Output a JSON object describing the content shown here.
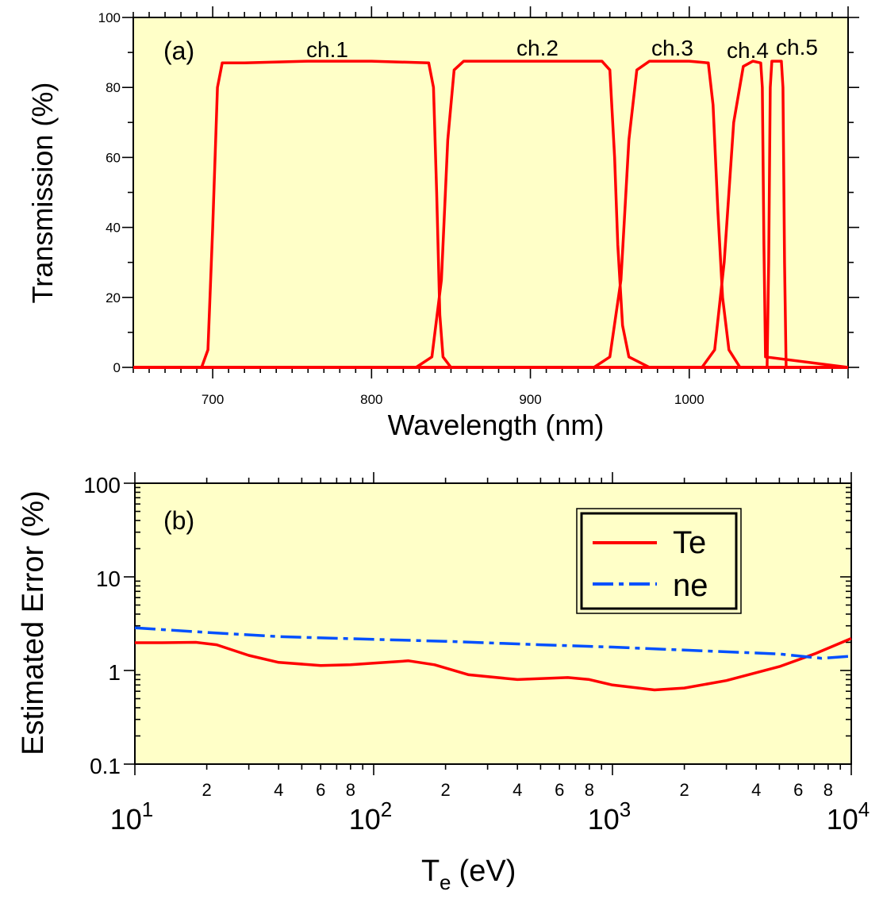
{
  "chart_data": [
    {
      "type": "line",
      "panel_label": "(a)",
      "xlabel": "Wavelength (nm)",
      "ylabel": "Transmission (%)",
      "xlim": [
        650,
        1100
      ],
      "ylim": [
        0,
        100
      ],
      "x_ticks": [
        700,
        800,
        900,
        1000
      ],
      "y_ticks": [
        0,
        20,
        40,
        60,
        80,
        100
      ],
      "grid": false,
      "line_color": "#ff0000",
      "series": [
        {
          "name": "ch.1",
          "x": [
            650,
            693,
            697,
            700,
            703,
            706,
            720,
            760,
            800,
            836,
            839,
            841,
            843,
            845,
            850,
            1100
          ],
          "y": [
            0,
            0,
            5,
            40,
            80,
            87,
            87,
            87.5,
            87.5,
            87,
            80,
            50,
            15,
            3,
            0,
            0
          ]
        },
        {
          "name": "ch.2",
          "x": [
            650,
            828,
            838,
            844,
            848,
            852,
            858,
            900,
            945,
            950,
            953,
            955,
            958,
            962,
            975,
            1100
          ],
          "y": [
            0,
            0,
            3,
            25,
            65,
            85,
            87.5,
            87.5,
            87.5,
            85,
            60,
            35,
            12,
            3,
            0,
            0
          ]
        },
        {
          "name": "ch.3",
          "x": [
            650,
            940,
            950,
            957,
            962,
            967,
            975,
            1000,
            1012,
            1015,
            1018,
            1021,
            1025,
            1032,
            1100
          ],
          "y": [
            0,
            0,
            3,
            25,
            65,
            85,
            87.5,
            87.5,
            87,
            75,
            45,
            20,
            5,
            0,
            0
          ]
        },
        {
          "name": "ch.4",
          "x": [
            650,
            1008,
            1016,
            1022,
            1028,
            1034,
            1040,
            1045,
            1046,
            1047,
            1048,
            1100
          ],
          "y": [
            0,
            0,
            5,
            30,
            70,
            86,
            87.5,
            87,
            80,
            35,
            3,
            0
          ]
        },
        {
          "name": "ch.5",
          "x": [
            650,
            1049,
            1050,
            1051,
            1052,
            1058,
            1059,
            1060,
            1061,
            1100
          ],
          "y": [
            0,
            0,
            30,
            80,
            87.5,
            87.5,
            80,
            30,
            0,
            0
          ]
        }
      ],
      "annotations": [
        "ch.1",
        "ch.2",
        "ch.3",
        "ch.4",
        "ch.5"
      ]
    },
    {
      "type": "line",
      "panel_label": "(b)",
      "xlabel_main": "T",
      "xlabel_sub": "e",
      "xlabel_rest": " (eV)",
      "ylabel": "Estimated Error (%)",
      "xscale": "log",
      "yscale": "log",
      "xlim": [
        10,
        10000
      ],
      "ylim": [
        0.1,
        100
      ],
      "y_tick_labels": [
        "0.1",
        "1",
        "10",
        "100"
      ],
      "x_major_labels": [
        {
          "base": "10",
          "exp": "1"
        },
        {
          "base": "10",
          "exp": "2"
        },
        {
          "base": "10",
          "exp": "3"
        },
        {
          "base": "10",
          "exp": "4"
        }
      ],
      "x_minor_labels": [
        "2",
        "4",
        "6",
        "8"
      ],
      "legend_position": "top-right",
      "series": [
        {
          "name": "Te",
          "color": "#ff0000",
          "style": "solid",
          "x": [
            10,
            13,
            18,
            22,
            30,
            40,
            60,
            80,
            100,
            140,
            180,
            250,
            400,
            650,
            800,
            1000,
            1500,
            2000,
            3000,
            5000,
            7000,
            10000
          ],
          "y": [
            1.98,
            1.98,
            2.0,
            1.88,
            1.45,
            1.22,
            1.13,
            1.15,
            1.2,
            1.27,
            1.15,
            0.9,
            0.8,
            0.84,
            0.8,
            0.7,
            0.62,
            0.65,
            0.78,
            1.1,
            1.5,
            2.2
          ]
        },
        {
          "name": "ne",
          "color": "#0050ff",
          "style": "dash-dot",
          "x": [
            10,
            20,
            40,
            100,
            200,
            500,
            1000,
            2000,
            5000,
            7500,
            10000
          ],
          "y": [
            2.85,
            2.55,
            2.3,
            2.15,
            2.05,
            1.88,
            1.78,
            1.65,
            1.5,
            1.35,
            1.42
          ]
        }
      ]
    }
  ]
}
